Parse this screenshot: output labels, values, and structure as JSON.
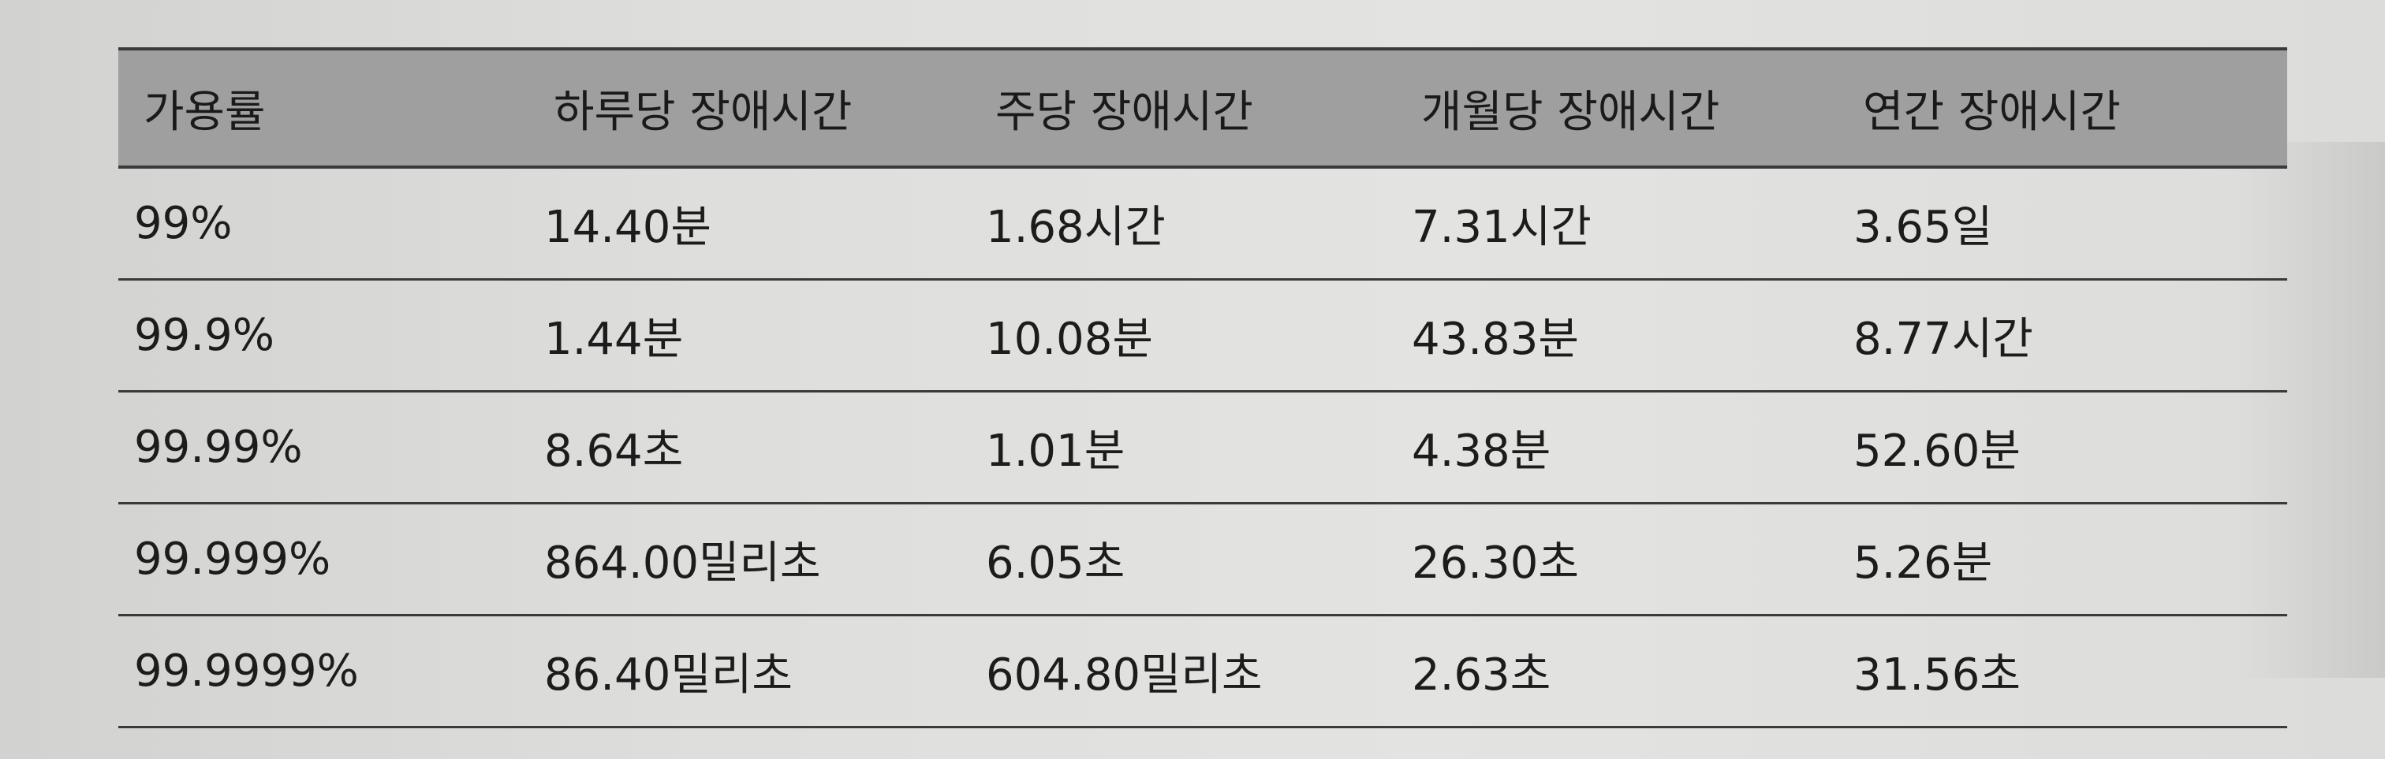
{
  "table": {
    "headers": [
      "가용률",
      "하루당 장애시간",
      "주당 장애시간",
      "개월당 장애시간",
      "연간 장애시간"
    ],
    "rows": [
      [
        "99%",
        "14.40분",
        "1.68시간",
        "7.31시간",
        "3.65일"
      ],
      [
        "99.9%",
        "1.44분",
        "10.08분",
        "43.83분",
        "8.77시간"
      ],
      [
        "99.99%",
        "8.64초",
        "1.01분",
        "4.38분",
        "52.60분"
      ],
      [
        "99.999%",
        "864.00밀리초",
        "6.05초",
        "26.30초",
        "5.26분"
      ],
      [
        "99.9999%",
        "86.40밀리초",
        "604.80밀리초",
        "2.63초",
        "31.56초"
      ]
    ]
  }
}
